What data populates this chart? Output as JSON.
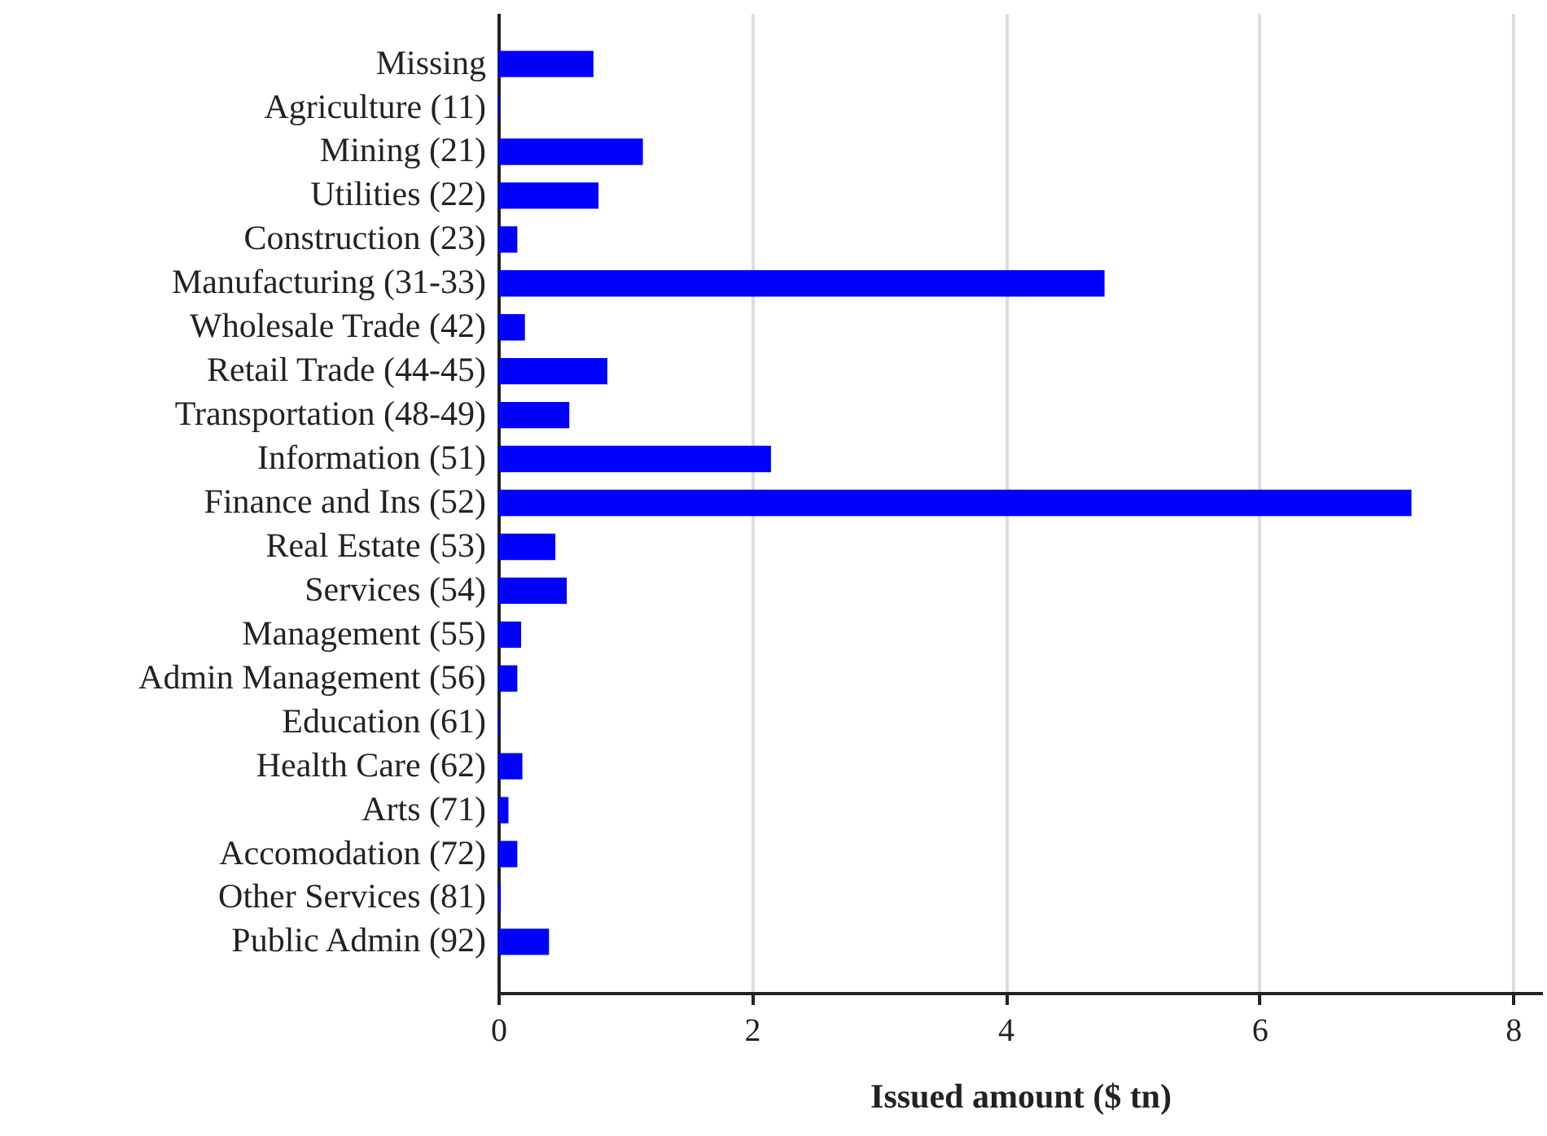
{
  "chart_data": {
    "type": "bar",
    "orientation": "horizontal",
    "xlabel": "Issued amount ($ tn)",
    "categories": [
      "Missing",
      "Agriculture (11)",
      "Mining (21)",
      "Utilities (22)",
      "Construction (23)",
      "Manufacturing (31-33)",
      "Wholesale Trade (42)",
      "Retail Trade (44-45)",
      "Transportation (48-49)",
      "Information (51)",
      "Finance and Ins (52)",
      "Real Estate (53)",
      "Services (54)",
      "Management (55)",
      "Admin Management (56)",
      "Education (61)",
      "Health Care (62)",
      "Arts (71)",
      "Accomodation (72)",
      "Other Services (81)",
      "Public Admin (92)"
    ],
    "values": [
      0.75,
      0.01,
      1.14,
      0.79,
      0.15,
      4.78,
      0.21,
      0.86,
      0.56,
      2.15,
      7.2,
      0.45,
      0.54,
      0.18,
      0.15,
      0.01,
      0.19,
      0.08,
      0.15,
      0.02,
      0.4
    ],
    "color": "#0000ff",
    "xlim": [
      0,
      8.23
    ],
    "xticks": [
      0,
      2,
      4,
      6,
      8
    ],
    "grid": "x"
  }
}
